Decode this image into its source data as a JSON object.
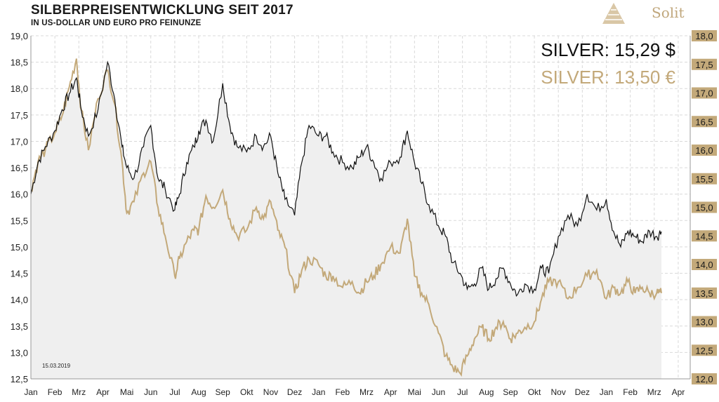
{
  "header": {
    "title": "SILBERPREISENTWICKLUNG SEIT 2017",
    "subtitle": "IN US-DOLLAR UND EURO PRO FEINUNZE"
  },
  "logo": {
    "text": "Solit",
    "color": "#c0a77c"
  },
  "prices": {
    "usd_label": "SILVER: 15,29 $",
    "eur_label": "SILVER: 13,50 €"
  },
  "date_stamp": "15.03.2019",
  "chart_data": {
    "type": "line",
    "colors": {
      "usd": "#111111",
      "eur": "#c3a97a",
      "area": "#efefef",
      "grid": "#d9d9d9",
      "right_axis_bg": "#c3a97a"
    },
    "x_ticks": [
      "Jan",
      "Feb",
      "Mrz",
      "Apr",
      "Mai",
      "Jun",
      "Jul",
      "Aug",
      "Sep",
      "Okt",
      "Nov",
      "Dez",
      "Jan",
      "Feb",
      "Mrz",
      "Apr",
      "Mai",
      "Jun",
      "Jul",
      "Aug",
      "Sep",
      "Okt",
      "Nov",
      "Dez",
      "Jan",
      "Feb",
      "Mrz",
      "Apr"
    ],
    "y_left": {
      "min": 12.5,
      "max": 19.0,
      "ticks": [
        "12,5",
        "13,0",
        "13,5",
        "14,0",
        "14,5",
        "15,0",
        "15,5",
        "16,0",
        "16,5",
        "17,0",
        "17,5",
        "18,0",
        "18,5",
        "19,0"
      ]
    },
    "y_right": {
      "min": 12.0,
      "max": 18.0,
      "ticks": [
        "12,0",
        "12,5",
        "13,0",
        "13,5",
        "14,0",
        "14,5",
        "15,0",
        "15,5",
        "16,0",
        "16,5",
        "17,0",
        "17,5",
        "18,0"
      ]
    },
    "grid": true,
    "series": [
      {
        "axis": "left",
        "months": [
          0,
          0.3,
          0.6,
          1,
          1.3,
          1.6,
          1.9,
          2.1,
          2.4,
          2.8,
          3.2,
          3.5,
          3.8,
          4,
          4.3,
          4.7,
          5,
          5.3,
          5.6,
          6,
          6.2,
          6.5,
          6.8,
          7,
          7.3,
          7.6,
          8,
          8.3,
          8.6,
          9,
          9.4,
          9.7,
          10,
          10.3,
          10.6,
          11,
          11.3,
          11.6,
          12,
          12.3,
          12.6,
          13,
          13.4,
          13.7,
          14,
          14.3,
          14.6,
          15,
          15.4,
          15.7,
          16,
          16.3,
          16.6,
          17,
          17.3,
          17.6,
          17.9,
          18.2,
          18.5,
          18.8,
          19.1,
          19.4,
          19.7,
          20,
          20.3,
          20.6,
          21,
          21.3,
          21.6,
          22,
          22.4,
          22.8,
          23.2,
          23.6,
          24,
          24.3,
          24.6,
          24.9,
          25.2,
          25.5,
          25.8,
          26.1,
          26.3
        ],
        "values": [
          16.0,
          16.6,
          16.9,
          17.2,
          17.6,
          17.9,
          18.2,
          17.6,
          17.1,
          17.6,
          18.5,
          17.8,
          16.9,
          16.5,
          16.3,
          16.9,
          17.3,
          16.3,
          16.1,
          15.7,
          16.0,
          16.6,
          16.9,
          17.2,
          17.4,
          17.0,
          18.1,
          17.3,
          16.9,
          16.8,
          17.1,
          16.9,
          17.1,
          16.4,
          15.9,
          15.6,
          16.6,
          17.3,
          17.1,
          17.1,
          16.8,
          16.6,
          16.5,
          16.7,
          16.9,
          16.6,
          16.3,
          16.6,
          16.7,
          17.2,
          16.6,
          16.2,
          15.8,
          15.4,
          15.2,
          14.7,
          14.5,
          14.2,
          14.3,
          14.6,
          14.2,
          14.4,
          14.6,
          14.3,
          14.1,
          14.3,
          14.2,
          14.6,
          14.5,
          15.2,
          15.6,
          15.4,
          16.0,
          15.7,
          15.9,
          15.3,
          15.0,
          15.3,
          15.2,
          15.1,
          15.3,
          15.2,
          15.29
        ]
      },
      {
        "axis": "right",
        "months": [
          0,
          0.3,
          0.6,
          1,
          1.3,
          1.6,
          1.9,
          2.1,
          2.4,
          2.8,
          3.2,
          3.5,
          3.8,
          4,
          4.3,
          4.7,
          5,
          5.3,
          5.6,
          6,
          6.2,
          6.5,
          6.8,
          7,
          7.3,
          7.6,
          8,
          8.3,
          8.6,
          9,
          9.4,
          9.7,
          10,
          10.3,
          10.6,
          11,
          11.3,
          11.6,
          12,
          12.3,
          12.6,
          13,
          13.4,
          13.7,
          14,
          14.3,
          14.6,
          15,
          15.4,
          15.7,
          16,
          16.3,
          16.6,
          17,
          17.3,
          17.6,
          17.9,
          18.2,
          18.5,
          18.8,
          19.1,
          19.4,
          19.7,
          20,
          20.3,
          20.6,
          21,
          21.3,
          21.6,
          22,
          22.4,
          22.8,
          23.2,
          23.6,
          24,
          24.3,
          24.6,
          24.9,
          25.2,
          25.5,
          25.8,
          26.1,
          26.3
        ],
        "values": [
          15.3,
          15.8,
          16.0,
          16.3,
          16.6,
          17.1,
          17.6,
          16.7,
          16.0,
          16.9,
          17.4,
          16.8,
          15.8,
          14.9,
          15.1,
          15.6,
          15.8,
          15.0,
          14.5,
          13.8,
          14.1,
          14.4,
          14.6,
          14.6,
          15.2,
          15.0,
          15.3,
          14.8,
          14.5,
          14.6,
          15.0,
          14.8,
          15.1,
          14.6,
          14.3,
          13.5,
          13.9,
          14.1,
          14.0,
          13.8,
          13.8,
          13.6,
          13.7,
          13.5,
          13.7,
          13.8,
          14.0,
          14.3,
          14.2,
          14.8,
          13.8,
          13.5,
          13.3,
          12.8,
          12.4,
          12.2,
          12.1,
          12.4,
          12.7,
          12.9,
          12.7,
          12.9,
          13.0,
          12.7,
          12.8,
          12.9,
          13.0,
          13.4,
          13.7,
          13.7,
          13.4,
          13.6,
          13.8,
          13.9,
          13.4,
          13.6,
          13.5,
          13.7,
          13.5,
          13.6,
          13.5,
          13.5,
          13.5
        ]
      }
    ]
  }
}
